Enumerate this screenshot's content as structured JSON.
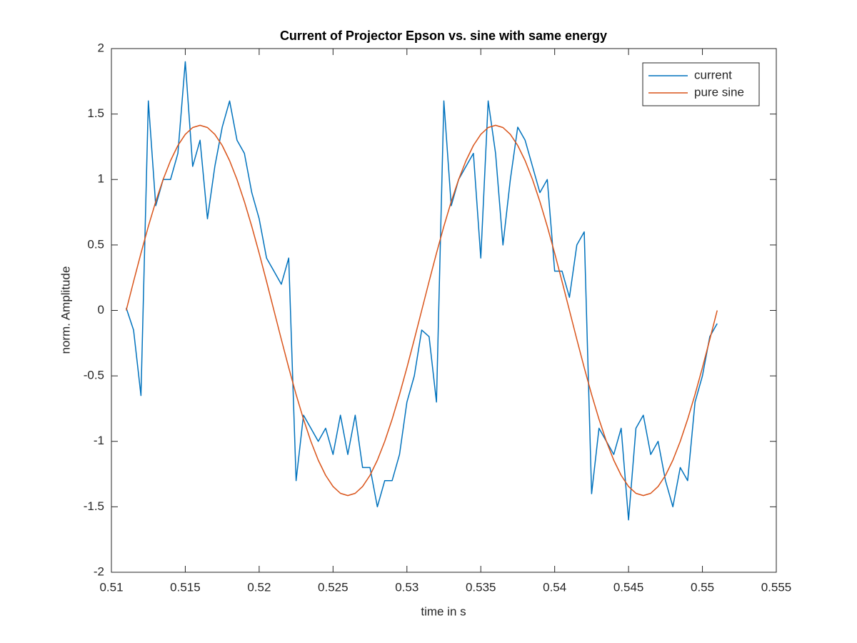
{
  "chart_data": {
    "type": "line",
    "title": "Current of Projector Epson vs. sine with same energy",
    "x_label": "time in s",
    "y_label": "norm. Amplitude",
    "x": [
      0.511,
      0.5115,
      0.512,
      0.5125,
      0.513,
      0.5135,
      0.514,
      0.5145,
      0.515,
      0.5155,
      0.516,
      0.5165,
      0.517,
      0.5175,
      0.518,
      0.5185,
      0.519,
      0.5195,
      0.52,
      0.5205,
      0.521,
      0.5215,
      0.522,
      0.5225,
      0.523,
      0.5235,
      0.524,
      0.5245,
      0.525,
      0.5255,
      0.526,
      0.5265,
      0.527,
      0.5275,
      0.528,
      0.5285,
      0.529,
      0.5295,
      0.53,
      0.5305,
      0.531,
      0.5315,
      0.532,
      0.5325,
      0.533,
      0.5335,
      0.534,
      0.5345,
      0.535,
      0.5355,
      0.536,
      0.5365,
      0.537,
      0.5375,
      0.538,
      0.5385,
      0.539,
      0.5395,
      0.54,
      0.5405,
      0.541,
      0.5415,
      0.542,
      0.5425,
      0.543,
      0.5435,
      0.544,
      0.5445,
      0.545,
      0.5455,
      0.546,
      0.5465,
      0.547,
      0.5475,
      0.548,
      0.5485,
      0.549,
      0.5495,
      0.55,
      0.5505,
      0.551
    ],
    "series": [
      {
        "name": "current",
        "color": "#0072bd",
        "values": [
          0.02,
          -0.15,
          -0.65,
          1.6,
          0.8,
          1.0,
          1.0,
          1.2,
          1.9,
          1.1,
          1.3,
          0.7,
          1.1,
          1.4,
          1.6,
          1.3,
          1.2,
          0.9,
          0.7,
          0.4,
          0.3,
          0.2,
          0.4,
          -1.3,
          -0.8,
          -0.9,
          -1.0,
          -0.9,
          -1.1,
          -0.8,
          -1.1,
          -0.8,
          -1.2,
          -1.2,
          -1.5,
          -1.3,
          -1.3,
          -1.1,
          -0.7,
          -0.5,
          -0.15,
          -0.2,
          -0.7,
          1.6,
          0.8,
          1.0,
          1.1,
          1.2,
          0.4,
          1.6,
          1.2,
          0.5,
          1.0,
          1.4,
          1.3,
          1.1,
          0.9,
          1.0,
          0.3,
          0.3,
          0.1,
          0.5,
          0.6,
          -1.4,
          -0.9,
          -1.0,
          -1.1,
          -0.9,
          -1.6,
          -0.9,
          -0.8,
          -1.1,
          -1.0,
          -1.3,
          -1.5,
          -1.2,
          -1.3,
          -0.7,
          -0.5,
          -0.2,
          -0.1
        ]
      },
      {
        "name": "pure sine",
        "color": "#d95319",
        "values": [
          0,
          0.221,
          0.437,
          0.642,
          0.831,
          1.0,
          1.144,
          1.26,
          1.345,
          1.397,
          1.414,
          1.397,
          1.345,
          1.26,
          1.144,
          1.0,
          0.831,
          0.642,
          0.437,
          0.221,
          0,
          -0.221,
          -0.437,
          -0.642,
          -0.831,
          -1.0,
          -1.144,
          -1.26,
          -1.345,
          -1.397,
          -1.414,
          -1.397,
          -1.345,
          -1.26,
          -1.144,
          -1.0,
          -0.831,
          -0.642,
          -0.437,
          -0.221,
          0,
          0.221,
          0.437,
          0.642,
          0.831,
          1.0,
          1.144,
          1.26,
          1.345,
          1.397,
          1.414,
          1.397,
          1.345,
          1.26,
          1.144,
          1.0,
          0.831,
          0.642,
          0.437,
          0.221,
          0,
          -0.221,
          -0.437,
          -0.642,
          -0.831,
          -1.0,
          -1.144,
          -1.26,
          -1.345,
          -1.397,
          -1.414,
          -1.397,
          -1.345,
          -1.26,
          -1.144,
          -1.0,
          -0.831,
          -0.642,
          -0.437,
          -0.221,
          0
        ]
      }
    ],
    "xlim": [
      0.51,
      0.555
    ],
    "xticks": [
      0.51,
      0.515,
      0.52,
      0.525,
      0.53,
      0.535,
      0.54,
      0.545,
      0.55,
      0.555
    ],
    "ylim": [
      -2,
      2
    ],
    "yticks": [
      -2,
      -1.5,
      -1,
      -0.5,
      0,
      0.5,
      1,
      1.5,
      2
    ],
    "legend": "top-right",
    "grid": false
  }
}
